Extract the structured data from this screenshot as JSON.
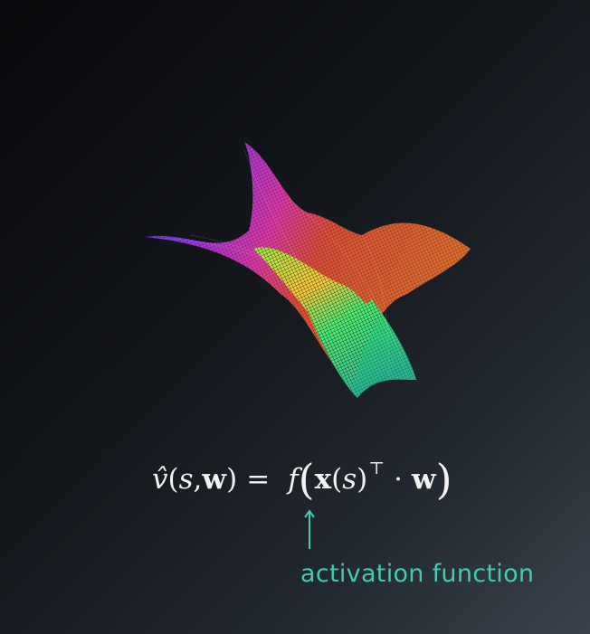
{
  "equation": {
    "hat_v": "v̂",
    "open_paren": "(",
    "s": "s",
    "comma": ",",
    "w": "w",
    "close_paren": ")",
    "equals": "=",
    "f": "f",
    "big_open": "(",
    "x": "x",
    "s_inner_open": "(",
    "s_inner": "s",
    "s_inner_close": ")",
    "transpose": "⊤",
    "dot": "·",
    "w2": "w",
    "big_close": ")"
  },
  "annotation": {
    "label": "activation function",
    "color": "#41c9b4"
  },
  "surface": {
    "icon": "rainbow-wireframe-surface"
  }
}
